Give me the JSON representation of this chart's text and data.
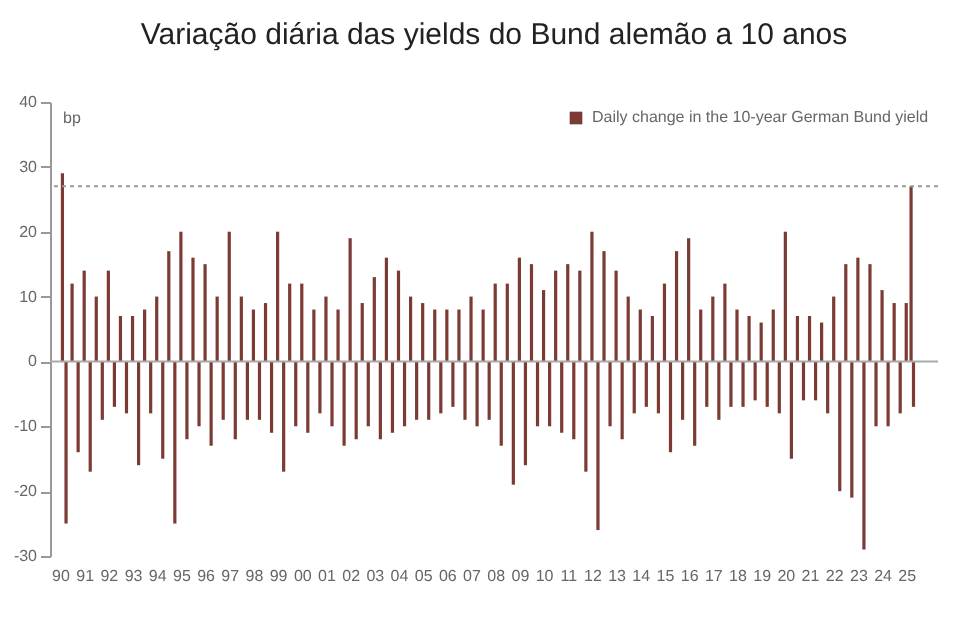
{
  "chart_data": {
    "type": "bar",
    "title": "Variação diária das yields do Bund alemão a 10 anos",
    "ylabel": "bp",
    "series": [
      {
        "name": "Daily change in the 10-year German Bund yield",
        "color": "#7b3a33",
        "x": [
          1990.1,
          1990.25,
          1990.5,
          1990.75,
          1991,
          1991.25,
          1991.5,
          1991.75,
          1992,
          1992.25,
          1992.5,
          1992.75,
          1993,
          1993.25,
          1993.5,
          1993.75,
          1994,
          1994.25,
          1994.5,
          1994.75,
          1995,
          1995.25,
          1995.5,
          1995.75,
          1996,
          1996.25,
          1996.5,
          1996.75,
          1997,
          1997.25,
          1997.5,
          1997.75,
          1998,
          1998.25,
          1998.5,
          1998.75,
          1999,
          1999.25,
          1999.5,
          1999.75,
          2000,
          2000.25,
          2000.5,
          2000.75,
          2001,
          2001.25,
          2001.5,
          2001.75,
          2002,
          2002.25,
          2002.5,
          2002.75,
          2003,
          2003.25,
          2003.5,
          2003.75,
          2004,
          2004.25,
          2004.5,
          2004.75,
          2005,
          2005.25,
          2005.5,
          2005.75,
          2006,
          2006.25,
          2006.5,
          2006.75,
          2007,
          2007.25,
          2007.5,
          2007.75,
          2008,
          2008.25,
          2008.5,
          2008.75,
          2009,
          2009.25,
          2009.5,
          2009.75,
          2010,
          2010.25,
          2010.5,
          2010.75,
          2011,
          2011.25,
          2011.5,
          2011.75,
          2012,
          2012.25,
          2012.5,
          2012.75,
          2013,
          2013.25,
          2013.5,
          2013.75,
          2014,
          2014.25,
          2014.5,
          2014.75,
          2015,
          2015.25,
          2015.5,
          2015.75,
          2016,
          2016.25,
          2016.5,
          2016.75,
          2017,
          2017.25,
          2017.5,
          2017.75,
          2018,
          2018.25,
          2018.5,
          2018.75,
          2019,
          2019.25,
          2019.5,
          2019.75,
          2020,
          2020.25,
          2020.5,
          2020.75,
          2021,
          2021.25,
          2021.5,
          2021.75,
          2022,
          2022.25,
          2022.5,
          2022.75,
          2023,
          2023.25,
          2023.5,
          2023.75,
          2024,
          2024.25,
          2024.5,
          2024.75,
          2025,
          2025.2,
          2025.3
        ],
        "values": [
          29,
          -25,
          12,
          -14,
          14,
          -17,
          10,
          -9,
          14,
          -7,
          7,
          -8,
          7,
          -16,
          8,
          -8,
          10,
          -15,
          17,
          -25,
          20,
          -12,
          16,
          -10,
          15,
          -13,
          10,
          -9,
          20,
          -12,
          10,
          -9,
          8,
          -9,
          9,
          -11,
          20,
          -17,
          12,
          -10,
          12,
          -11,
          8,
          -8,
          10,
          -10,
          8,
          -13,
          19,
          -12,
          9,
          -10,
          13,
          -12,
          16,
          -11,
          14,
          -10,
          10,
          -9,
          9,
          -9,
          8,
          -8,
          8,
          -7,
          8,
          -9,
          10,
          -10,
          8,
          -9,
          12,
          -13,
          12,
          -19,
          16,
          -16,
          15,
          -10,
          11,
          -10,
          14,
          -11,
          15,
          -12,
          14,
          -17,
          20,
          -26,
          17,
          -10,
          14,
          -12,
          10,
          -8,
          8,
          -7,
          7,
          -8,
          12,
          -14,
          17,
          -9,
          19,
          -13,
          8,
          -7,
          10,
          -9,
          12,
          -7,
          8,
          -7,
          7,
          -6,
          6,
          -7,
          8,
          -8,
          20,
          -15,
          7,
          -6,
          7,
          -6,
          6,
          -8,
          10,
          -20,
          15,
          -21,
          16,
          -29,
          15,
          -10,
          11,
          -10,
          9,
          -8,
          9,
          27,
          -7
        ]
      }
    ],
    "xlim": [
      1990,
      2025.9
    ],
    "xticks": [
      {
        "value": 1990,
        "label": "90"
      },
      {
        "value": 1991,
        "label": "91"
      },
      {
        "value": 1992,
        "label": "92"
      },
      {
        "value": 1993,
        "label": "93"
      },
      {
        "value": 1994,
        "label": "94"
      },
      {
        "value": 1995,
        "label": "95"
      },
      {
        "value": 1996,
        "label": "96"
      },
      {
        "value": 1997,
        "label": "97"
      },
      {
        "value": 1998,
        "label": "98"
      },
      {
        "value": 1999,
        "label": "99"
      },
      {
        "value": 2000,
        "label": "00"
      },
      {
        "value": 2001,
        "label": "01"
      },
      {
        "value": 2002,
        "label": "02"
      },
      {
        "value": 2003,
        "label": "03"
      },
      {
        "value": 2004,
        "label": "04"
      },
      {
        "value": 2005,
        "label": "05"
      },
      {
        "value": 2006,
        "label": "06"
      },
      {
        "value": 2007,
        "label": "07"
      },
      {
        "value": 2008,
        "label": "08"
      },
      {
        "value": 2009,
        "label": "09"
      },
      {
        "value": 2010,
        "label": "10"
      },
      {
        "value": 2011,
        "label": "11"
      },
      {
        "value": 2012,
        "label": "12"
      },
      {
        "value": 2013,
        "label": "13"
      },
      {
        "value": 2014,
        "label": "14"
      },
      {
        "value": 2015,
        "label": "15"
      },
      {
        "value": 2016,
        "label": "16"
      },
      {
        "value": 2017,
        "label": "17"
      },
      {
        "value": 2018,
        "label": "18"
      },
      {
        "value": 2019,
        "label": "19"
      },
      {
        "value": 2020,
        "label": "20"
      },
      {
        "value": 2021,
        "label": "21"
      },
      {
        "value": 2022,
        "label": "22"
      },
      {
        "value": 2023,
        "label": "23"
      },
      {
        "value": 2024,
        "label": "24"
      },
      {
        "value": 2025,
        "label": "25"
      }
    ],
    "ylim": [
      -30,
      40
    ],
    "yticks": [
      -30,
      -20,
      -10,
      0,
      10,
      20,
      30,
      40
    ],
    "ref_lines": [
      {
        "axis": "y",
        "value": 27,
        "color": "#999999",
        "line_style": "dotted"
      },
      {
        "axis": "y",
        "value": 0,
        "color": "#aaaaaa",
        "line_style": "solid"
      }
    ],
    "legend": "top right",
    "grid": false
  }
}
